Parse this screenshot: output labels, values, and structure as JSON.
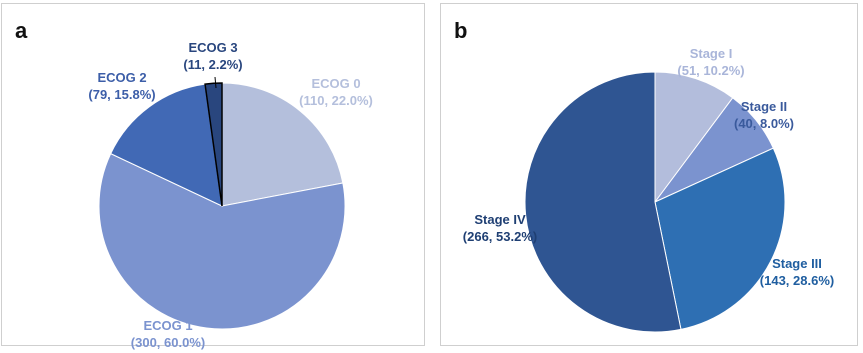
{
  "panels": [
    {
      "letter": "a"
    },
    {
      "letter": "b"
    }
  ],
  "chart_data": [
    {
      "type": "pie",
      "panel": "a",
      "slices": [
        {
          "name": "ECOG 0",
          "value": 110,
          "percent": 22.0,
          "label_line1": "ECOG 0",
          "label_line2": "(110, 22.0%)",
          "color": "#b4bfdc",
          "label_color": "#b4bfdc"
        },
        {
          "name": "ECOG 1",
          "value": 300,
          "percent": 60.0,
          "label_line1": "ECOG 1",
          "label_line2": "(300, 60.0%)",
          "color": "#7b93cf",
          "label_color": "#7b93cf"
        },
        {
          "name": "ECOG 2",
          "value": 79,
          "percent": 15.8,
          "label_line1": "ECOG 2",
          "label_line2": "(79, 15.8%)",
          "color": "#4169b5",
          "label_color": "#3c5ea8"
        },
        {
          "name": "ECOG 3",
          "value": 11,
          "percent": 2.2,
          "label_line1": "ECOG 3",
          "label_line2": "(11, 2.2%)",
          "color": "#29467e",
          "label_color": "#29467e"
        }
      ],
      "start_angle_deg": 0,
      "direction": "clockwise"
    },
    {
      "type": "pie",
      "panel": "b",
      "slices": [
        {
          "name": "Stage I",
          "value": 51,
          "percent": 10.2,
          "label_line1": "Stage I",
          "label_line2": "(51, 10.2%)",
          "color": "#b3bddc",
          "label_color": "#a9b5d9"
        },
        {
          "name": "Stage II",
          "value": 40,
          "percent": 8.0,
          "label_line1": "Stage II",
          "label_line2": "(40, 8.0%)",
          "color": "#7b93cf",
          "label_color": "#3a5a9c"
        },
        {
          "name": "Stage III",
          "value": 143,
          "percent": 28.6,
          "label_line1": "Stage III",
          "label_line2": "(143, 28.6%)",
          "color": "#2e6fb3",
          "label_color": "#1f5ea0"
        },
        {
          "name": "Stage IV",
          "value": 266,
          "percent": 53.2,
          "label_line1": "Stage IV",
          "label_line2": "(266, 53.2%)",
          "color": "#2f5592",
          "label_color": "#1f3f73"
        }
      ],
      "start_angle_deg": 0,
      "direction": "clockwise"
    }
  ]
}
